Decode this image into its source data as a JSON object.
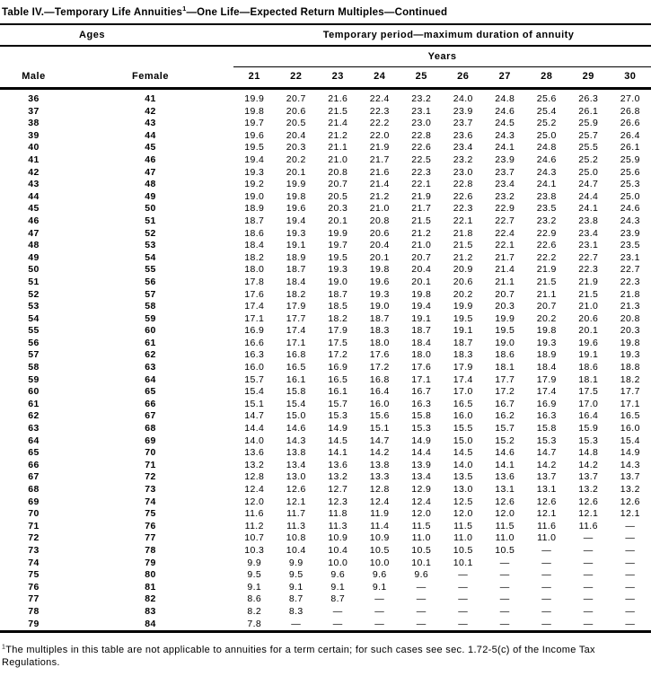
{
  "title": {
    "main": "Table IV.—Temporary Life Annuities",
    "superscript": "1",
    "rest": "—One Life—Expected Return Multiples—Continued"
  },
  "table": {
    "ages_group_label": "Ages",
    "period_group_label": "Temporary period—maximum duration of annuity",
    "years_label": "Years",
    "male_header": "Male",
    "female_header": "Female",
    "year_columns": [
      "21",
      "22",
      "23",
      "24",
      "25",
      "26",
      "27",
      "28",
      "29",
      "30"
    ],
    "missing_value_symbol": "—",
    "rows": [
      {
        "male": "36",
        "female": "41",
        "values": [
          "19.9",
          "20.7",
          "21.6",
          "22.4",
          "23.2",
          "24.0",
          "24.8",
          "25.6",
          "26.3",
          "27.0"
        ]
      },
      {
        "male": "37",
        "female": "42",
        "values": [
          "19.8",
          "20.6",
          "21.5",
          "22.3",
          "23.1",
          "23.9",
          "24.6",
          "25.4",
          "26.1",
          "26.8"
        ]
      },
      {
        "male": "38",
        "female": "43",
        "values": [
          "19.7",
          "20.5",
          "21.4",
          "22.2",
          "23.0",
          "23.7",
          "24.5",
          "25.2",
          "25.9",
          "26.6"
        ]
      },
      {
        "male": "39",
        "female": "44",
        "values": [
          "19.6",
          "20.4",
          "21.2",
          "22.0",
          "22.8",
          "23.6",
          "24.3",
          "25.0",
          "25.7",
          "26.4"
        ]
      },
      {
        "male": "40",
        "female": "45",
        "values": [
          "19.5",
          "20.3",
          "21.1",
          "21.9",
          "22.6",
          "23.4",
          "24.1",
          "24.8",
          "25.5",
          "26.1"
        ]
      },
      {
        "male": "41",
        "female": "46",
        "values": [
          "19.4",
          "20.2",
          "21.0",
          "21.7",
          "22.5",
          "23.2",
          "23.9",
          "24.6",
          "25.2",
          "25.9"
        ]
      },
      {
        "male": "42",
        "female": "47",
        "values": [
          "19.3",
          "20.1",
          "20.8",
          "21.6",
          "22.3",
          "23.0",
          "23.7",
          "24.3",
          "25.0",
          "25.6"
        ]
      },
      {
        "male": "43",
        "female": "48",
        "values": [
          "19.2",
          "19.9",
          "20.7",
          "21.4",
          "22.1",
          "22.8",
          "23.4",
          "24.1",
          "24.7",
          "25.3"
        ]
      },
      {
        "male": "44",
        "female": "49",
        "values": [
          "19.0",
          "19.8",
          "20.5",
          "21.2",
          "21.9",
          "22.6",
          "23.2",
          "23.8",
          "24.4",
          "25.0"
        ]
      },
      {
        "male": "45",
        "female": "50",
        "values": [
          "18.9",
          "19.6",
          "20.3",
          "21.0",
          "21.7",
          "22.3",
          "22.9",
          "23.5",
          "24.1",
          "24.6"
        ]
      },
      {
        "male": "46",
        "female": "51",
        "values": [
          "18.7",
          "19.4",
          "20.1",
          "20.8",
          "21.5",
          "22.1",
          "22.7",
          "23.2",
          "23.8",
          "24.3"
        ]
      },
      {
        "male": "47",
        "female": "52",
        "values": [
          "18.6",
          "19.3",
          "19.9",
          "20.6",
          "21.2",
          "21.8",
          "22.4",
          "22.9",
          "23.4",
          "23.9"
        ]
      },
      {
        "male": "48",
        "female": "53",
        "values": [
          "18.4",
          "19.1",
          "19.7",
          "20.4",
          "21.0",
          "21.5",
          "22.1",
          "22.6",
          "23.1",
          "23.5"
        ]
      },
      {
        "male": "49",
        "female": "54",
        "values": [
          "18.2",
          "18.9",
          "19.5",
          "20.1",
          "20.7",
          "21.2",
          "21.7",
          "22.2",
          "22.7",
          "23.1"
        ]
      },
      {
        "male": "50",
        "female": "55",
        "values": [
          "18.0",
          "18.7",
          "19.3",
          "19.8",
          "20.4",
          "20.9",
          "21.4",
          "21.9",
          "22.3",
          "22.7"
        ]
      },
      {
        "male": "51",
        "female": "56",
        "values": [
          "17.8",
          "18.4",
          "19.0",
          "19.6",
          "20.1",
          "20.6",
          "21.1",
          "21.5",
          "21.9",
          "22.3"
        ]
      },
      {
        "male": "52",
        "female": "57",
        "values": [
          "17.6",
          "18.2",
          "18.7",
          "19.3",
          "19.8",
          "20.2",
          "20.7",
          "21.1",
          "21.5",
          "21.8"
        ]
      },
      {
        "male": "53",
        "female": "58",
        "values": [
          "17.4",
          "17.9",
          "18.5",
          "19.0",
          "19.4",
          "19.9",
          "20.3",
          "20.7",
          "21.0",
          "21.3"
        ]
      },
      {
        "male": "54",
        "female": "59",
        "values": [
          "17.1",
          "17.7",
          "18.2",
          "18.7",
          "19.1",
          "19.5",
          "19.9",
          "20.2",
          "20.6",
          "20.8"
        ]
      },
      {
        "male": "55",
        "female": "60",
        "values": [
          "16.9",
          "17.4",
          "17.9",
          "18.3",
          "18.7",
          "19.1",
          "19.5",
          "19.8",
          "20.1",
          "20.3"
        ]
      },
      {
        "male": "56",
        "female": "61",
        "values": [
          "16.6",
          "17.1",
          "17.5",
          "18.0",
          "18.4",
          "18.7",
          "19.0",
          "19.3",
          "19.6",
          "19.8"
        ]
      },
      {
        "male": "57",
        "female": "62",
        "values": [
          "16.3",
          "16.8",
          "17.2",
          "17.6",
          "18.0",
          "18.3",
          "18.6",
          "18.9",
          "19.1",
          "19.3"
        ]
      },
      {
        "male": "58",
        "female": "63",
        "values": [
          "16.0",
          "16.5",
          "16.9",
          "17.2",
          "17.6",
          "17.9",
          "18.1",
          "18.4",
          "18.6",
          "18.8"
        ]
      },
      {
        "male": "59",
        "female": "64",
        "values": [
          "15.7",
          "16.1",
          "16.5",
          "16.8",
          "17.1",
          "17.4",
          "17.7",
          "17.9",
          "18.1",
          "18.2"
        ]
      },
      {
        "male": "60",
        "female": "65",
        "values": [
          "15.4",
          "15.8",
          "16.1",
          "16.4",
          "16.7",
          "17.0",
          "17.2",
          "17.4",
          "17.5",
          "17.7"
        ]
      },
      {
        "male": "61",
        "female": "66",
        "values": [
          "15.1",
          "15.4",
          "15.7",
          "16.0",
          "16.3",
          "16.5",
          "16.7",
          "16.9",
          "17.0",
          "17.1"
        ]
      },
      {
        "male": "62",
        "female": "67",
        "values": [
          "14.7",
          "15.0",
          "15.3",
          "15.6",
          "15.8",
          "16.0",
          "16.2",
          "16.3",
          "16.4",
          "16.5"
        ]
      },
      {
        "male": "63",
        "female": "68",
        "values": [
          "14.4",
          "14.6",
          "14.9",
          "15.1",
          "15.3",
          "15.5",
          "15.7",
          "15.8",
          "15.9",
          "16.0"
        ]
      },
      {
        "male": "64",
        "female": "69",
        "values": [
          "14.0",
          "14.3",
          "14.5",
          "14.7",
          "14.9",
          "15.0",
          "15.2",
          "15.3",
          "15.3",
          "15.4"
        ]
      },
      {
        "male": "65",
        "female": "70",
        "values": [
          "13.6",
          "13.8",
          "14.1",
          "14.2",
          "14.4",
          "14.5",
          "14.6",
          "14.7",
          "14.8",
          "14.9"
        ]
      },
      {
        "male": "66",
        "female": "71",
        "values": [
          "13.2",
          "13.4",
          "13.6",
          "13.8",
          "13.9",
          "14.0",
          "14.1",
          "14.2",
          "14.2",
          "14.3"
        ]
      },
      {
        "male": "67",
        "female": "72",
        "values": [
          "12.8",
          "13.0",
          "13.2",
          "13.3",
          "13.4",
          "13.5",
          "13.6",
          "13.7",
          "13.7",
          "13.7"
        ]
      },
      {
        "male": "68",
        "female": "73",
        "values": [
          "12.4",
          "12.6",
          "12.7",
          "12.8",
          "12.9",
          "13.0",
          "13.1",
          "13.1",
          "13.2",
          "13.2"
        ]
      },
      {
        "male": "69",
        "female": "74",
        "values": [
          "12.0",
          "12.1",
          "12.3",
          "12.4",
          "12.4",
          "12.5",
          "12.6",
          "12.6",
          "12.6",
          "12.6"
        ]
      },
      {
        "male": "70",
        "female": "75",
        "values": [
          "11.6",
          "11.7",
          "11.8",
          "11.9",
          "12.0",
          "12.0",
          "12.0",
          "12.1",
          "12.1",
          "12.1"
        ]
      },
      {
        "male": "71",
        "female": "76",
        "values": [
          "11.2",
          "11.3",
          "11.3",
          "11.4",
          "11.5",
          "11.5",
          "11.5",
          "11.6",
          "11.6",
          "—"
        ]
      },
      {
        "male": "72",
        "female": "77",
        "values": [
          "10.7",
          "10.8",
          "10.9",
          "10.9",
          "11.0",
          "11.0",
          "11.0",
          "11.0",
          "—",
          "—"
        ]
      },
      {
        "male": "73",
        "female": "78",
        "values": [
          "10.3",
          "10.4",
          "10.4",
          "10.5",
          "10.5",
          "10.5",
          "10.5",
          "—",
          "—",
          "—"
        ]
      },
      {
        "male": "74",
        "female": "79",
        "values": [
          "9.9",
          "9.9",
          "10.0",
          "10.0",
          "10.1",
          "10.1",
          "—",
          "—",
          "—",
          "—"
        ]
      },
      {
        "male": "75",
        "female": "80",
        "values": [
          "9.5",
          "9.5",
          "9.6",
          "9.6",
          "9.6",
          "—",
          "—",
          "—",
          "—",
          "—"
        ]
      },
      {
        "male": "76",
        "female": "81",
        "values": [
          "9.1",
          "9.1",
          "9.1",
          "9.1",
          "—",
          "—",
          "—",
          "—",
          "—",
          "—"
        ]
      },
      {
        "male": "77",
        "female": "82",
        "values": [
          "8.6",
          "8.7",
          "8.7",
          "—",
          "—",
          "—",
          "—",
          "—",
          "—",
          "—"
        ]
      },
      {
        "male": "78",
        "female": "83",
        "values": [
          "8.2",
          "8.3",
          "—",
          "—",
          "—",
          "—",
          "—",
          "—",
          "—",
          "—"
        ]
      },
      {
        "male": "79",
        "female": "84",
        "values": [
          "7.8",
          "—",
          "—",
          "—",
          "—",
          "—",
          "—",
          "—",
          "—",
          "—"
        ]
      }
    ]
  },
  "footnote": {
    "superscript": "1",
    "text": "The multiples in this table are not applicable to annuities for a term certain; for such cases see sec. 1.72-5(c) of the Income Tax Regulations."
  },
  "colors": {
    "text": "#000000",
    "background": "#ffffff",
    "rule": "#000000"
  }
}
